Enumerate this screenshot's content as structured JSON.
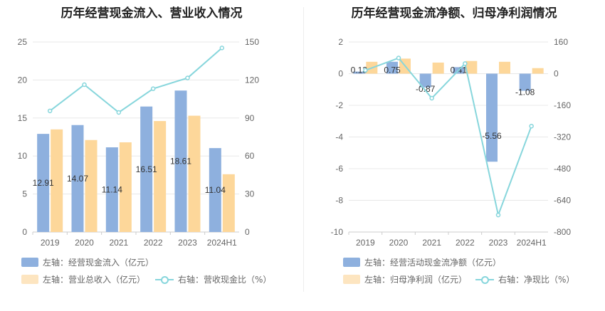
{
  "colors": {
    "bar_blue": "#8eb0de",
    "bar_orange": "#fdd79a",
    "line_cyan": "#87d6dc",
    "grid": "#e8e8e8",
    "axis": "#cccccc"
  },
  "chart_data": [
    {
      "type": "bar",
      "title": "历年经营现金流入、营业收入情况",
      "categories": [
        "2019",
        "2020",
        "2021",
        "2022",
        "2023",
        "2024H1"
      ],
      "y_left": {
        "ticks": [
          "0",
          "5",
          "10",
          "15",
          "20",
          "25"
        ],
        "range": [
          0,
          25
        ]
      },
      "y_right": {
        "ticks": [
          "0",
          "30",
          "60",
          "90",
          "120",
          "150"
        ],
        "range": [
          0,
          150
        ]
      },
      "series": [
        {
          "name": "左轴：经营现金流入（亿元）",
          "axis": "left",
          "kind": "bar",
          "values": [
            12.91,
            14.07,
            11.14,
            16.51,
            18.61,
            11.04
          ],
          "labels": [
            "12.91",
            "14.07",
            "11.14",
            "16.51",
            "18.61",
            "11.04"
          ]
        },
        {
          "name": "左轴：营业总收入（亿元）",
          "axis": "left",
          "kind": "bar",
          "values": [
            13.5,
            12.1,
            11.8,
            14.6,
            15.3,
            7.6
          ]
        },
        {
          "name": "右轴：营收现金比（%）",
          "axis": "right",
          "kind": "line",
          "values": [
            95.6,
            116.3,
            94.4,
            113.1,
            121.6,
            145.3
          ]
        }
      ]
    },
    {
      "type": "bar",
      "title": "历年经营现金流净额、归母净利润情况",
      "categories": [
        "2019",
        "2020",
        "2021",
        "2022",
        "2023",
        "2024H1"
      ],
      "y_left": {
        "ticks": [
          "-10",
          "-8",
          "-6",
          "-4",
          "-2",
          "0",
          "2"
        ],
        "range": [
          -10,
          2
        ]
      },
      "y_right": {
        "ticks": [
          "-800",
          "-640",
          "-480",
          "-320",
          "-160",
          "0",
          "160"
        ],
        "range": [
          -800,
          160
        ]
      },
      "series": [
        {
          "name": "左轴：经营活动现金流净额（亿元）",
          "axis": "left",
          "kind": "bar",
          "values": [
            0.13,
            0.75,
            -0.87,
            0.41,
            -5.56,
            -1.08
          ],
          "labels": [
            "0.13",
            "0.75",
            "-0.87",
            "0.41",
            "-5.56",
            "-1.08"
          ]
        },
        {
          "name": "左轴：归母净利润（亿元）",
          "axis": "left",
          "kind": "bar",
          "values": [
            0.75,
            0.95,
            0.7,
            0.8,
            0.75,
            0.35
          ]
        },
        {
          "name": "右轴：净现比（%）",
          "axis": "right",
          "kind": "line",
          "values": [
            17,
            79,
            -124,
            51,
            -714,
            -265
          ]
        }
      ]
    }
  ]
}
